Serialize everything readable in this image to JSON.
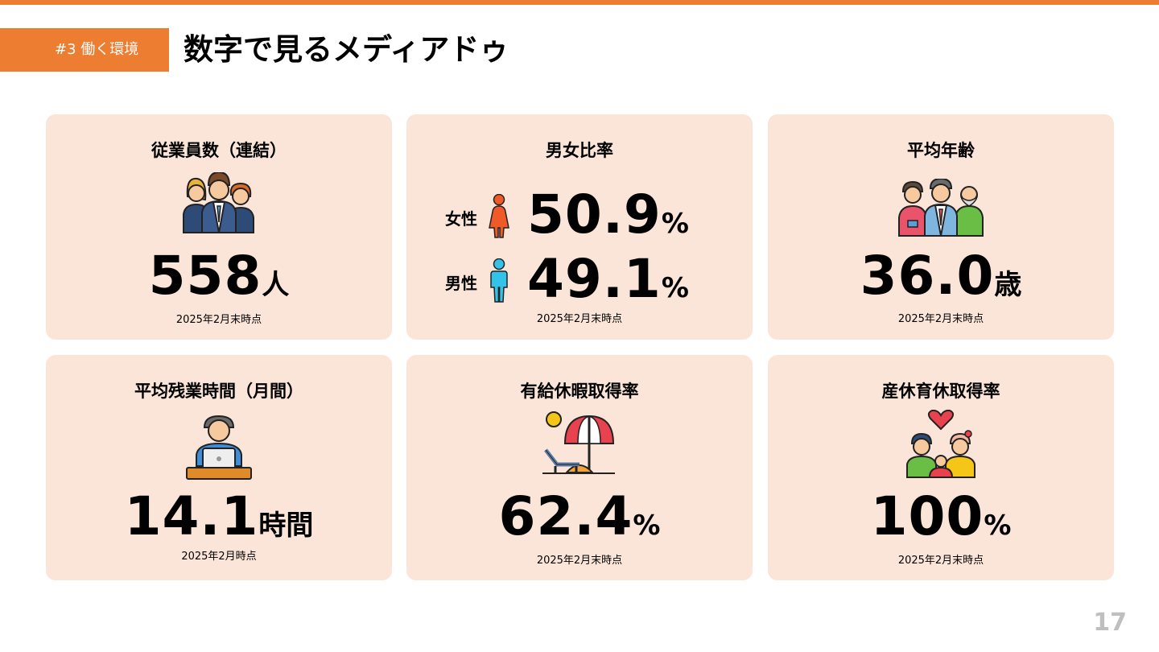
{
  "header": {
    "section_tag": "#3 働く環境",
    "title": "数字で見るメディアドゥ"
  },
  "colors": {
    "accent": "#ED7D31",
    "card_background": "#FBE5D9",
    "female_icon": "#F05A28",
    "male_icon": "#33C3E8",
    "page_number": "#BFBFBF"
  },
  "cards": {
    "employees": {
      "title": "従業員数（連結）",
      "value": "558",
      "unit": "人",
      "note": "2025年2月末時点",
      "icon": "people-group-icon"
    },
    "gender_ratio": {
      "title": "男女比率",
      "female": {
        "label": "女性",
        "value": "50.9",
        "unit": "%",
        "icon": "female-icon"
      },
      "male": {
        "label": "男性",
        "value": "49.1",
        "unit": "%",
        "icon": "male-icon"
      },
      "note": "2025年2月末時点"
    },
    "average_age": {
      "title": "平均年齢",
      "value": "36.0",
      "unit": "歳",
      "note": "2025年2月末時点",
      "icon": "generations-icon"
    },
    "overtime": {
      "title": "平均残業時間（月間）",
      "value": "14.1",
      "unit": "時間",
      "note": "2025年2月時点",
      "icon": "laptop-worker-icon"
    },
    "paid_leave": {
      "title": "有給休暇取得率",
      "value": "62.4",
      "unit": "%",
      "note": "2025年2月末時点",
      "icon": "beach-umbrella-icon"
    },
    "parental_leave": {
      "title": "産休育休取得率",
      "value": "100",
      "unit": "%",
      "note": "2025年2月末時点",
      "icon": "family-heart-icon"
    }
  },
  "footer": {
    "page_number": "17"
  }
}
